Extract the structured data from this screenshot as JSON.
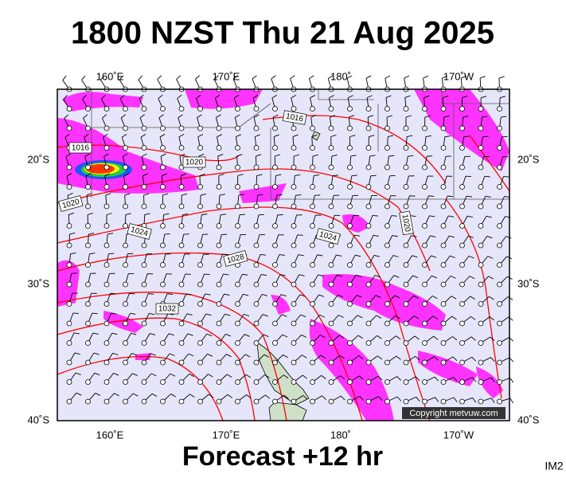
{
  "title": "1800 NZST Thu 21 Aug 2025",
  "footer": "Forecast +12 hr",
  "image_id": "IM2",
  "copyright": "Copyright metvuw.com",
  "map": {
    "longitude_labels": [
      "160˚E",
      "170˚E",
      "180˚",
      "170˚W"
    ],
    "latitude_labels": [
      "20˚S",
      "30˚S",
      "40˚S"
    ],
    "isobar_labels": [
      "1016",
      "1016",
      "1020",
      "1020",
      "1020",
      "1024",
      "1024",
      "1028",
      "1032"
    ]
  }
}
